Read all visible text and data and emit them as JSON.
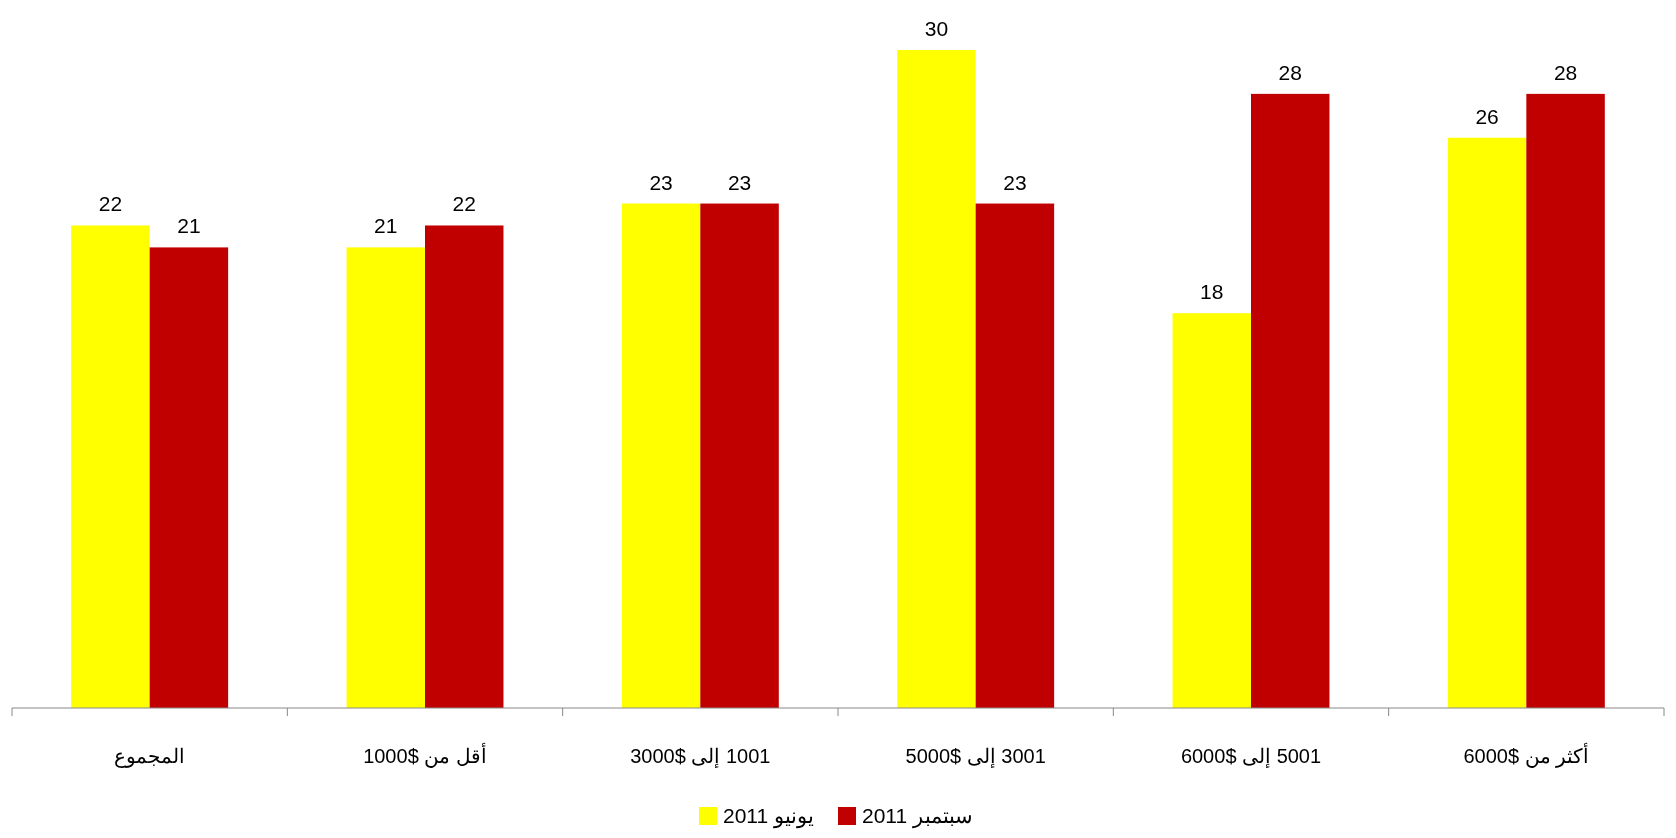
{
  "chart_data": {
    "type": "bar",
    "categories": [
      "المجموع",
      "أقل من $1000",
      "1001 إلى $3000",
      "3001 إلى $5000",
      "5001 إلى $6000",
      "أكثر من $6000"
    ],
    "series": [
      {
        "name": "يونيو 2011",
        "color": "#ffff00",
        "values": [
          22,
          21,
          23,
          30,
          18,
          26
        ]
      },
      {
        "name": "سبتمبر 2011",
        "color": "#c00000",
        "values": [
          21,
          22,
          23,
          23,
          28,
          28
        ]
      }
    ],
    "data_labels": true,
    "legend": "bottom"
  }
}
